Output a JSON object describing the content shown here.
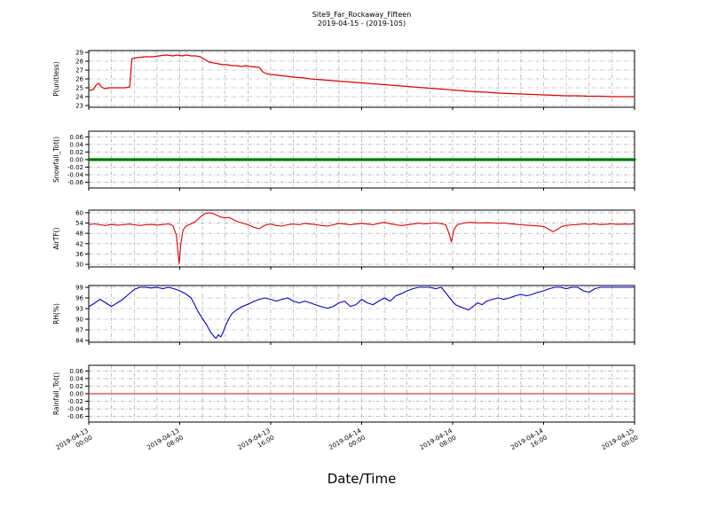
{
  "header": {
    "title_line1": "Site9_Far_Rockaway_Fifteen",
    "title_line2": "2019-04-15 - (2019-105)"
  },
  "xlabel": "Date/Time",
  "grid": {
    "style": "dash-dot",
    "color": "#999999",
    "dash": "4 2 1 2",
    "x_step_hours": 2
  },
  "x_axis": {
    "range_hours": [
      0,
      48
    ],
    "ticks": [
      {
        "hour": 0,
        "date": "2019-04-13",
        "time": "00:00"
      },
      {
        "hour": 8,
        "date": "2019-04-13",
        "time": "08:00"
      },
      {
        "hour": 16,
        "date": "2019-04-13",
        "time": "16:00"
      },
      {
        "hour": 24,
        "date": "2019-04-14",
        "time": "00:00"
      },
      {
        "hour": 32,
        "date": "2019-04-14",
        "time": "08:00"
      },
      {
        "hour": 40,
        "date": "2019-04-14",
        "time": "16:00"
      },
      {
        "hour": 48,
        "date": "2019-04-15",
        "time": "00:00"
      }
    ]
  },
  "chart_data": [
    {
      "type": "line",
      "ylabel": "P(unitless)",
      "ylim": [
        22.8,
        29.2
      ],
      "ytick_values": [
        23,
        24,
        25,
        26,
        27,
        28,
        29
      ],
      "ytick_labels": [
        "23",
        "24",
        "25",
        "26",
        "27",
        "28",
        "29"
      ],
      "color": "#e00000",
      "line_width": 1.2,
      "points": [
        [
          0,
          24.7
        ],
        [
          0.4,
          24.8
        ],
        [
          0.7,
          25.4
        ],
        [
          0.9,
          25.5
        ],
        [
          1.1,
          25.1
        ],
        [
          1.4,
          24.9
        ],
        [
          1.8,
          25.0
        ],
        [
          2.5,
          25.0
        ],
        [
          3.2,
          25.0
        ],
        [
          3.6,
          25.1
        ],
        [
          3.8,
          28.3
        ],
        [
          4.3,
          28.4
        ],
        [
          5,
          28.5
        ],
        [
          5.6,
          28.5
        ],
        [
          6.2,
          28.6
        ],
        [
          6.8,
          28.7
        ],
        [
          7.4,
          28.6
        ],
        [
          7.8,
          28.7
        ],
        [
          8.2,
          28.6
        ],
        [
          8.6,
          28.7
        ],
        [
          9,
          28.6
        ],
        [
          9.4,
          28.6
        ],
        [
          9.8,
          28.5
        ],
        [
          10.2,
          28.2
        ],
        [
          10.6,
          27.9
        ],
        [
          11,
          27.8
        ],
        [
          11.4,
          27.7
        ],
        [
          11.8,
          27.6
        ],
        [
          12.2,
          27.6
        ],
        [
          12.6,
          27.5
        ],
        [
          13,
          27.5
        ],
        [
          13.4,
          27.4
        ],
        [
          13.8,
          27.5
        ],
        [
          14.2,
          27.4
        ],
        [
          14.6,
          27.35
        ],
        [
          15,
          27.3
        ],
        [
          15.3,
          26.8
        ],
        [
          15.6,
          26.6
        ],
        [
          16,
          26.5
        ],
        [
          16.5,
          26.45
        ],
        [
          17,
          26.35
        ],
        [
          17.5,
          26.3
        ],
        [
          18,
          26.2
        ],
        [
          18.5,
          26.15
        ],
        [
          19,
          26.1
        ],
        [
          19.5,
          26.0
        ],
        [
          20,
          25.95
        ],
        [
          21,
          25.85
        ],
        [
          22,
          25.75
        ],
        [
          23,
          25.65
        ],
        [
          24,
          25.55
        ],
        [
          25,
          25.45
        ],
        [
          26,
          25.35
        ],
        [
          27,
          25.25
        ],
        [
          28,
          25.15
        ],
        [
          29,
          25.05
        ],
        [
          30,
          24.95
        ],
        [
          31,
          24.85
        ],
        [
          32,
          24.75
        ],
        [
          33,
          24.65
        ],
        [
          34,
          24.55
        ],
        [
          35,
          24.5
        ],
        [
          36,
          24.4
        ],
        [
          37,
          24.35
        ],
        [
          38,
          24.3
        ],
        [
          39,
          24.25
        ],
        [
          40,
          24.2
        ],
        [
          41,
          24.15
        ],
        [
          42,
          24.1
        ],
        [
          43,
          24.1
        ],
        [
          44,
          24.05
        ],
        [
          45,
          24.05
        ],
        [
          46,
          24.0
        ],
        [
          47,
          24.0
        ],
        [
          48,
          24.0
        ]
      ]
    },
    {
      "type": "line",
      "ylabel": "Snowfall_Tot()",
      "ylim": [
        -0.075,
        0.075
      ],
      "ytick_values": [
        -0.06,
        -0.04,
        -0.02,
        0,
        0.02,
        0.04,
        0.06
      ],
      "ytick_labels": [
        "-0.06",
        "-0.04",
        "-0.02",
        "0.00",
        "0.02",
        "0.04",
        "0.06"
      ],
      "color": "#007a00",
      "line_width": 3.2,
      "points": [
        [
          0,
          0
        ],
        [
          48,
          0
        ]
      ]
    },
    {
      "type": "line",
      "ylabel": "AirTF()",
      "ylim": [
        28.5,
        61.5
      ],
      "ytick_values": [
        30,
        36,
        42,
        48,
        54,
        60
      ],
      "ytick_labels": [
        "30",
        "36",
        "42",
        "48",
        "54",
        "60"
      ],
      "color": "#e00000",
      "line_width": 1.1,
      "points": [
        [
          0,
          53.0
        ],
        [
          0.5,
          53.5
        ],
        [
          1,
          53.0
        ],
        [
          1.5,
          52.6
        ],
        [
          2,
          53.2
        ],
        [
          2.5,
          52.8
        ],
        [
          3,
          53.0
        ],
        [
          3.5,
          53.4
        ],
        [
          4,
          53.0
        ],
        [
          4.5,
          52.6
        ],
        [
          5,
          53.0
        ],
        [
          5.5,
          53.2
        ],
        [
          6,
          52.8
        ],
        [
          6.5,
          53.1
        ],
        [
          7,
          53.5
        ],
        [
          7.4,
          52.5
        ],
        [
          7.7,
          47.0
        ],
        [
          7.95,
          30.5
        ],
        [
          8.1,
          42.0
        ],
        [
          8.3,
          50.0
        ],
        [
          8.6,
          52.5
        ],
        [
          9,
          53.5
        ],
        [
          9.4,
          55.0
        ],
        [
          9.8,
          57.5
        ],
        [
          10.2,
          59.5
        ],
        [
          10.6,
          60.0
        ],
        [
          11,
          59.4
        ],
        [
          11.3,
          58.4
        ],
        [
          11.6,
          57.5
        ],
        [
          12,
          57.0
        ],
        [
          12.3,
          57.4
        ],
        [
          12.6,
          56.4
        ],
        [
          13,
          55.0
        ],
        [
          13.5,
          54.0
        ],
        [
          14,
          53.0
        ],
        [
          14.5,
          51.6
        ],
        [
          15,
          50.6
        ],
        [
          15.3,
          52.0
        ],
        [
          15.6,
          53.0
        ],
        [
          16,
          53.4
        ],
        [
          16.5,
          52.6
        ],
        [
          17,
          52.2
        ],
        [
          17.5,
          53.0
        ],
        [
          18,
          53.4
        ],
        [
          18.5,
          53.0
        ],
        [
          19,
          53.8
        ],
        [
          19.5,
          53.4
        ],
        [
          20,
          53.0
        ],
        [
          20.5,
          52.6
        ],
        [
          21,
          52.2
        ],
        [
          21.5,
          53.0
        ],
        [
          22,
          53.8
        ],
        [
          22.5,
          53.4
        ],
        [
          23,
          53.0
        ],
        [
          23.5,
          53.4
        ],
        [
          24,
          53.8
        ],
        [
          24.5,
          53.4
        ],
        [
          25,
          53.0
        ],
        [
          25.5,
          53.8
        ],
        [
          26,
          54.4
        ],
        [
          26.5,
          53.6
        ],
        [
          27,
          53.0
        ],
        [
          27.5,
          52.6
        ],
        [
          28,
          52.9
        ],
        [
          28.5,
          53.4
        ],
        [
          29,
          53.9
        ],
        [
          29.5,
          53.5
        ],
        [
          30,
          53.8
        ],
        [
          30.5,
          54.0
        ],
        [
          31,
          53.6
        ],
        [
          31.4,
          53.0
        ],
        [
          31.7,
          47.5
        ],
        [
          31.9,
          43.0
        ],
        [
          32.1,
          50.0
        ],
        [
          32.4,
          53.0
        ],
        [
          33,
          54.0
        ],
        [
          33.5,
          54.4
        ],
        [
          34,
          54.2
        ],
        [
          34.5,
          54.0
        ],
        [
          35,
          54.2
        ],
        [
          35.5,
          54.0
        ],
        [
          36,
          53.8
        ],
        [
          36.5,
          54.0
        ],
        [
          37,
          53.6
        ],
        [
          37.5,
          53.3
        ],
        [
          38,
          53.0
        ],
        [
          38.5,
          52.8
        ],
        [
          39,
          52.6
        ],
        [
          39.5,
          52.3
        ],
        [
          40,
          52.0
        ],
        [
          40.4,
          50.6
        ],
        [
          40.8,
          49.0
        ],
        [
          41.2,
          50.2
        ],
        [
          41.6,
          52.0
        ],
        [
          42,
          52.6
        ],
        [
          42.5,
          53.0
        ],
        [
          43,
          53.1
        ],
        [
          43.5,
          53.5
        ],
        [
          44,
          53.2
        ],
        [
          44.5,
          53.5
        ],
        [
          45,
          53.1
        ],
        [
          45.5,
          53.3
        ],
        [
          46,
          53.5
        ],
        [
          46.5,
          53.2
        ],
        [
          47,
          53.4
        ],
        [
          47.5,
          53.3
        ],
        [
          48,
          53.5
        ]
      ]
    },
    {
      "type": "line",
      "ylabel": "RH(%)",
      "ylim": [
        83.5,
        99.5
      ],
      "ytick_values": [
        84,
        87,
        90,
        93,
        96,
        99
      ],
      "ytick_labels": [
        "84",
        "87",
        "90",
        "93",
        "96",
        "99"
      ],
      "color": "#0000cc",
      "line_width": 1.1,
      "points": [
        [
          0,
          93.5
        ],
        [
          0.5,
          94.5
        ],
        [
          1,
          95.6
        ],
        [
          1.5,
          94.6
        ],
        [
          2,
          93.6
        ],
        [
          2.5,
          94.6
        ],
        [
          3,
          95.6
        ],
        [
          3.5,
          97.0
        ],
        [
          4,
          98.4
        ],
        [
          4.5,
          99.0
        ],
        [
          5,
          99.0
        ],
        [
          5.5,
          98.8
        ],
        [
          6,
          99.0
        ],
        [
          6.5,
          98.6
        ],
        [
          7,
          99.0
        ],
        [
          7.5,
          98.6
        ],
        [
          8,
          98.0
        ],
        [
          8.5,
          97.2
        ],
        [
          9,
          96.0
        ],
        [
          9.3,
          94.2
        ],
        [
          9.6,
          92.2
        ],
        [
          10,
          90.2
        ],
        [
          10.4,
          88.2
        ],
        [
          10.7,
          86.4
        ],
        [
          11,
          85.2
        ],
        [
          11.2,
          84.6
        ],
        [
          11.4,
          85.6
        ],
        [
          11.6,
          85.0
        ],
        [
          11.8,
          86.2
        ],
        [
          12,
          88.0
        ],
        [
          12.3,
          90.0
        ],
        [
          12.6,
          91.6
        ],
        [
          13,
          92.6
        ],
        [
          13.5,
          93.6
        ],
        [
          14,
          94.2
        ],
        [
          14.5,
          95.0
        ],
        [
          15,
          95.6
        ],
        [
          15.5,
          96.0
        ],
        [
          16,
          95.6
        ],
        [
          16.5,
          95.1
        ],
        [
          17,
          95.6
        ],
        [
          17.5,
          96.0
        ],
        [
          18,
          95.1
        ],
        [
          18.5,
          94.6
        ],
        [
          19,
          95.1
        ],
        [
          19.5,
          94.6
        ],
        [
          20,
          94.0
        ],
        [
          20.5,
          93.5
        ],
        [
          21,
          93.1
        ],
        [
          21.5,
          93.6
        ],
        [
          22,
          94.6
        ],
        [
          22.5,
          95.1
        ],
        [
          23,
          93.6
        ],
        [
          23.5,
          94.1
        ],
        [
          24,
          95.6
        ],
        [
          24.5,
          94.6
        ],
        [
          25,
          94.1
        ],
        [
          25.5,
          95.1
        ],
        [
          26,
          96.0
        ],
        [
          26.5,
          95.1
        ],
        [
          27,
          96.6
        ],
        [
          27.5,
          97.2
        ],
        [
          28,
          98.0
        ],
        [
          28.5,
          98.6
        ],
        [
          29,
          99.0
        ],
        [
          29.5,
          99.0
        ],
        [
          30,
          99.0
        ],
        [
          30.5,
          98.6
        ],
        [
          31,
          99.0
        ],
        [
          31.5,
          97.0
        ],
        [
          32,
          95.0
        ],
        [
          32.3,
          94.0
        ],
        [
          32.6,
          93.6
        ],
        [
          33,
          93.1
        ],
        [
          33.4,
          92.6
        ],
        [
          33.8,
          93.6
        ],
        [
          34.2,
          94.6
        ],
        [
          34.6,
          94.1
        ],
        [
          35,
          95.1
        ],
        [
          35.5,
          95.6
        ],
        [
          36,
          96.0
        ],
        [
          36.5,
          95.6
        ],
        [
          37,
          96.0
        ],
        [
          37.5,
          96.6
        ],
        [
          38,
          97.0
        ],
        [
          38.5,
          96.6
        ],
        [
          39,
          97.0
        ],
        [
          39.5,
          97.6
        ],
        [
          40,
          98.0
        ],
        [
          40.5,
          98.6
        ],
        [
          41,
          99.0
        ],
        [
          41.5,
          99.0
        ],
        [
          42,
          98.6
        ],
        [
          42.5,
          99.0
        ],
        [
          43,
          99.0
        ],
        [
          43.5,
          98.0
        ],
        [
          44,
          97.6
        ],
        [
          44.5,
          98.6
        ],
        [
          45,
          99.0
        ],
        [
          45.5,
          99.0
        ],
        [
          46,
          99.0
        ],
        [
          47,
          99.0
        ],
        [
          48,
          99.0
        ]
      ]
    },
    {
      "type": "line",
      "ylabel": "Rainfall_Tot()",
      "ylim": [
        -0.075,
        0.075
      ],
      "ytick_values": [
        -0.06,
        -0.04,
        -0.02,
        0,
        0.02,
        0.04,
        0.06
      ],
      "ytick_labels": [
        "-0.06",
        "-0.04",
        "-0.02",
        "0.00",
        "0.02",
        "0.04",
        "0.06"
      ],
      "color": "#e00000",
      "line_width": 1.1,
      "points": [
        [
          0,
          0
        ],
        [
          48,
          0
        ]
      ]
    }
  ]
}
